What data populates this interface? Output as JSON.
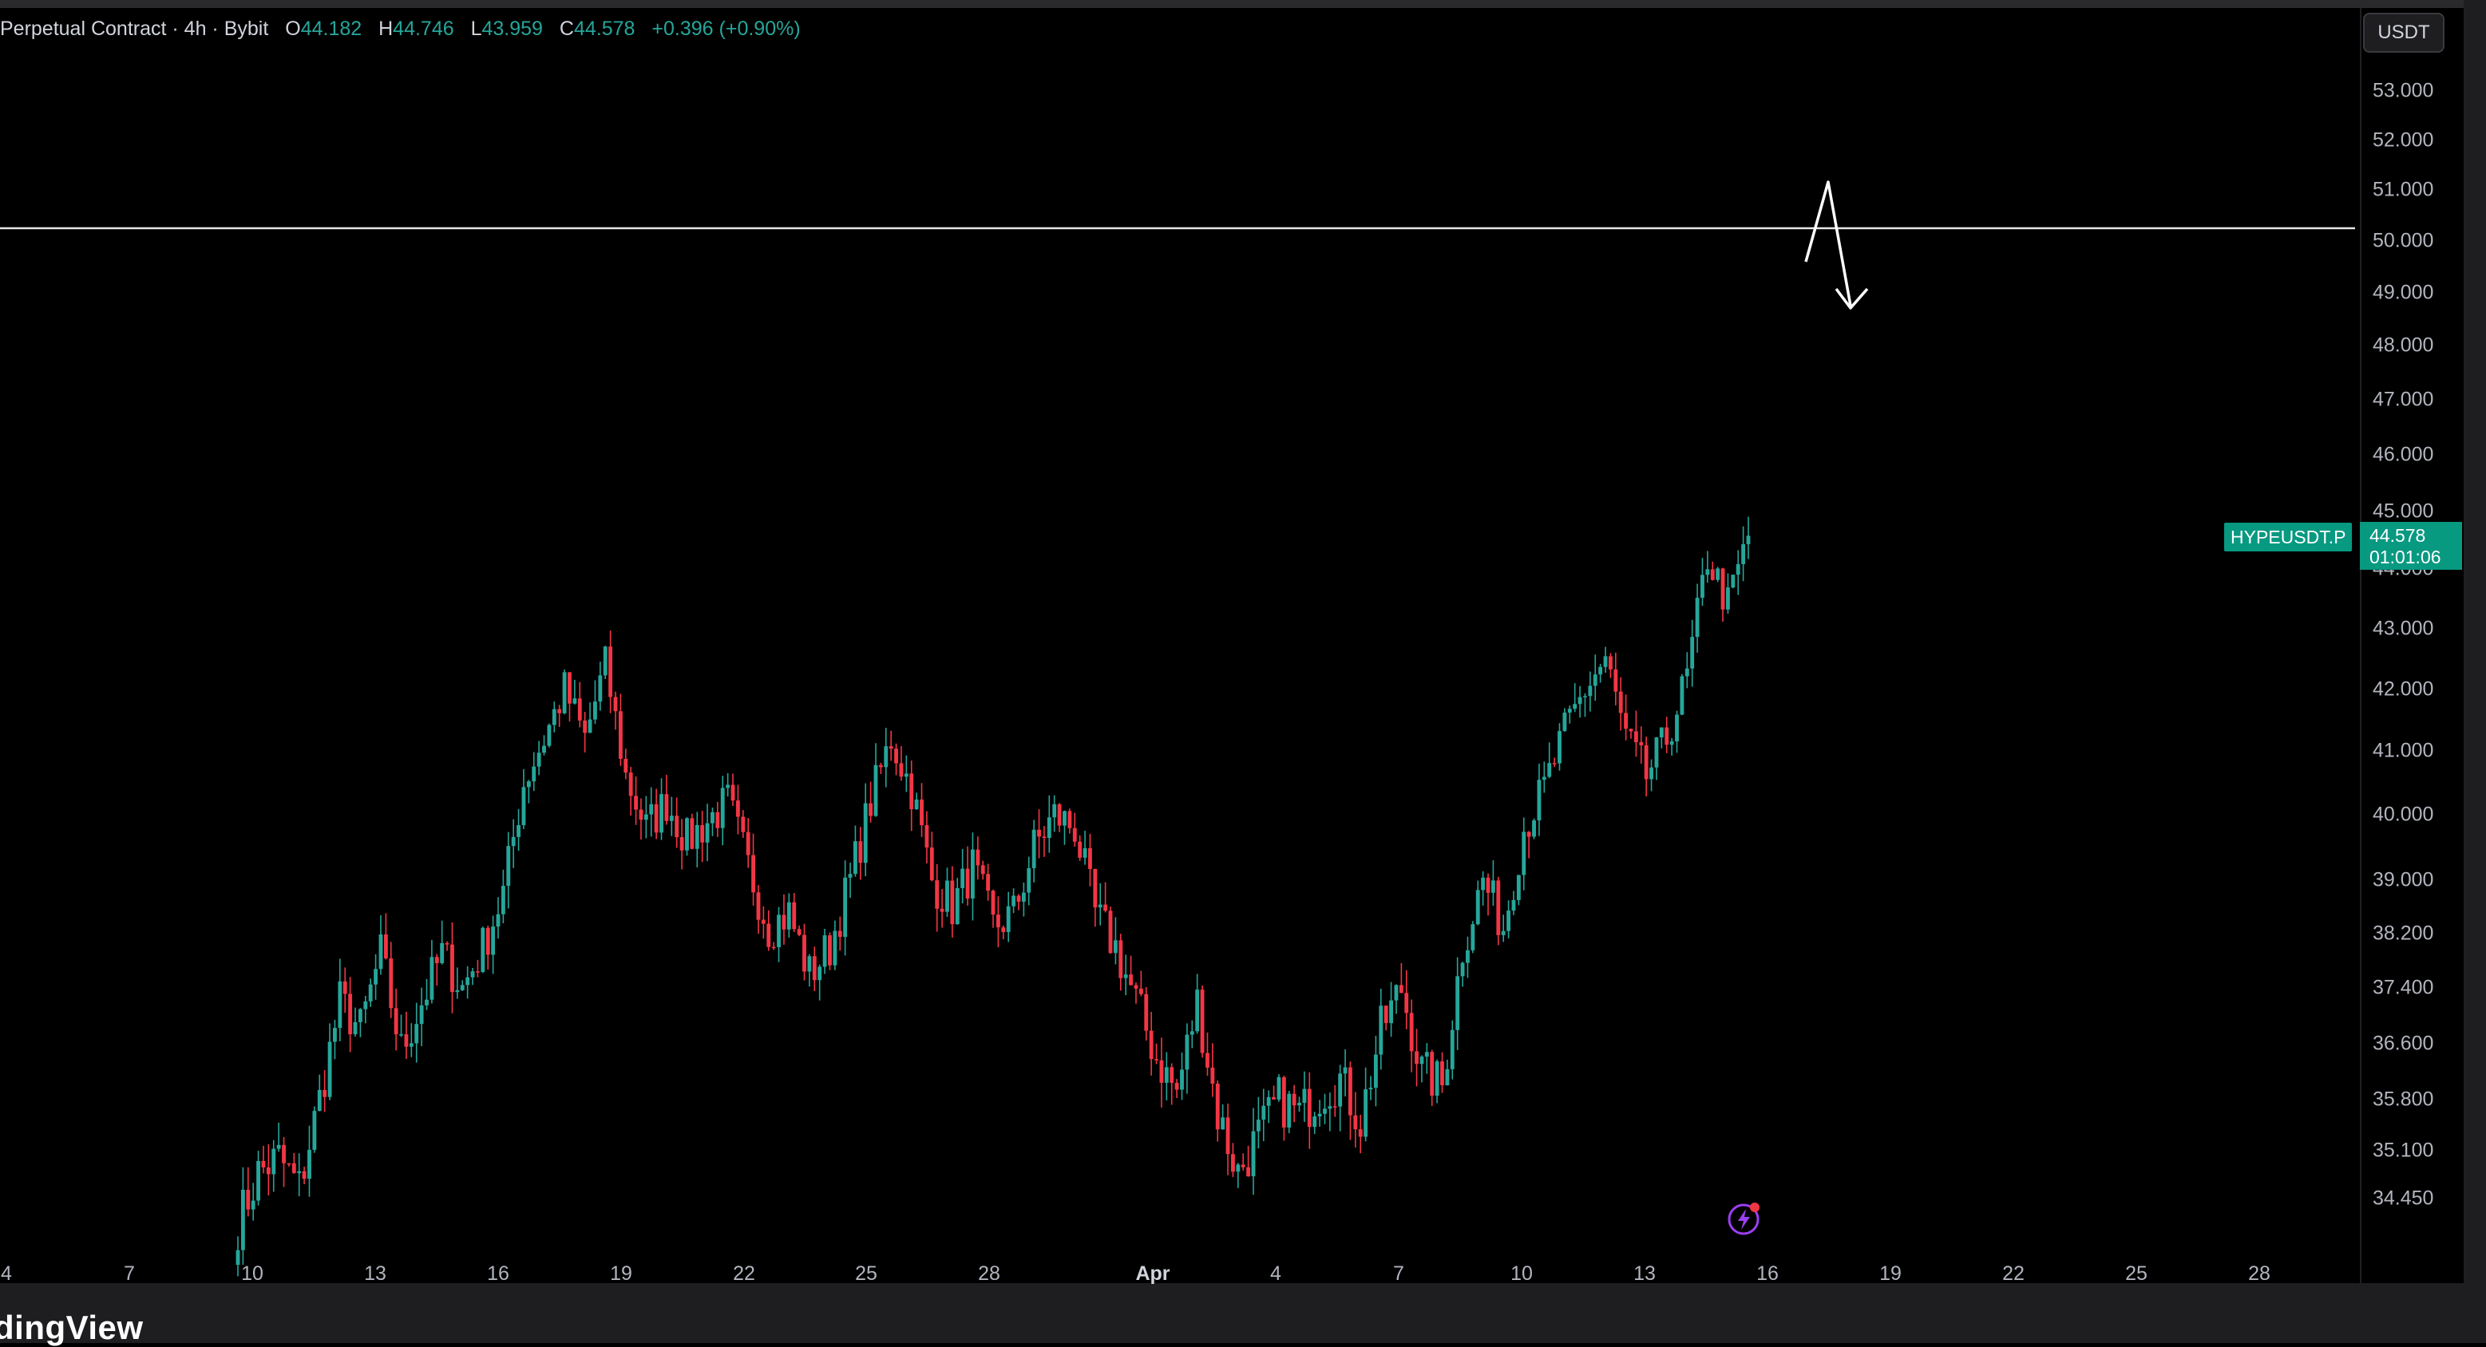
{
  "legend": {
    "title": "Perpetual Contract · 4h · Bybit",
    "open_key": "O",
    "open": "44.182",
    "high_key": "H",
    "high": "44.746",
    "low_key": "L",
    "low": "43.959",
    "close_key": "C",
    "close": "44.578",
    "change": "+0.396 (+0.90%)"
  },
  "currency_button": "USDT",
  "symbol_tag": "HYPEUSDT.P",
  "price_tag": {
    "price": "44.578",
    "countdown": "01:01:06"
  },
  "brand": "dingView",
  "flash_icon": "lightning-icon",
  "colors": {
    "up": "#26a69a",
    "down": "#f23645",
    "tag": "#089981",
    "background": "#000000"
  },
  "chart_data": {
    "type": "candlestick",
    "title": "Perpetual Contract · 4h · Bybit",
    "x_ticks": [
      "4",
      "7",
      "10",
      "13",
      "16",
      "19",
      "22",
      "25",
      "28",
      "Apr",
      "4",
      "7",
      "10",
      "13",
      "16",
      "19",
      "22",
      "25",
      "28"
    ],
    "y_ticks": [
      "53.000",
      "52.000",
      "51.000",
      "50.000",
      "49.000",
      "48.000",
      "47.000",
      "46.000",
      "45.000",
      "44.000",
      "43.000",
      "42.000",
      "41.000",
      "40.000",
      "39.000",
      "38.200",
      "37.400",
      "36.600",
      "35.800",
      "35.100",
      "34.450"
    ],
    "horizontal_line": 50.0,
    "arrow_annotation": {
      "from": 49.6,
      "peak": 51.1,
      "to": 48.8,
      "direction": "down"
    },
    "last_price": 44.578,
    "ohlc_last": {
      "open": 44.182,
      "high": 44.746,
      "low": 43.959,
      "close": 44.578
    },
    "close_path": [
      [
        "Mar 10",
        34.1
      ],
      [
        "Mar 10",
        34.8
      ],
      [
        "Mar 11",
        35.0
      ],
      [
        "Mar 11",
        34.6
      ],
      [
        "Mar 12",
        35.8
      ],
      [
        "Mar 12",
        37.2
      ],
      [
        "Mar 13",
        36.8
      ],
      [
        "Mar 13",
        37.9
      ],
      [
        "Mar 14",
        36.5
      ],
      [
        "Mar 14",
        37.2
      ],
      [
        "Mar 15",
        37.9
      ],
      [
        "Mar 15",
        37.4
      ],
      [
        "Mar 16",
        38.0
      ],
      [
        "Mar 16",
        38.8
      ],
      [
        "Mar 17",
        40.5
      ],
      [
        "Mar 17",
        41.2
      ],
      [
        "Mar 18",
        42.0
      ],
      [
        "Mar 18",
        41.2
      ],
      [
        "Mar 19",
        42.4
      ],
      [
        "Mar 19",
        40.6
      ],
      [
        "Mar 20",
        39.8
      ],
      [
        "Mar 20",
        40.2
      ],
      [
        "Mar 21",
        39.6
      ],
      [
        "Mar 21",
        39.9
      ],
      [
        "Mar 22",
        40.2
      ],
      [
        "Mar 22",
        39.2
      ],
      [
        "Mar 23",
        38.3
      ],
      [
        "Mar 23",
        38.5
      ],
      [
        "Mar 24",
        37.6
      ],
      [
        "Mar 24",
        38.0
      ],
      [
        "Mar 25",
        39.0
      ],
      [
        "Mar 25",
        40.2
      ],
      [
        "Mar 26",
        41.2
      ],
      [
        "Mar 26",
        40.4
      ],
      [
        "Mar 27",
        39.0
      ],
      [
        "Mar 27",
        38.6
      ],
      [
        "Mar 28",
        39.2
      ],
      [
        "Mar 28",
        38.3
      ],
      [
        "Mar 29",
        38.5
      ],
      [
        "Mar 29",
        39.5
      ],
      [
        "Mar 30",
        40.0
      ],
      [
        "Mar 30",
        39.8
      ],
      [
        "Mar 31",
        38.5
      ],
      [
        "Mar 31",
        38.0
      ],
      [
        "Apr 1",
        37.2
      ],
      [
        "Apr 1",
        36.4
      ],
      [
        "Apr 2",
        35.9
      ],
      [
        "Apr 2",
        37.2
      ],
      [
        "Apr 3",
        35.6
      ],
      [
        "Apr 3",
        34.8
      ],
      [
        "Apr 4",
        35.3
      ],
      [
        "Apr 4",
        35.8
      ],
      [
        "Apr 5",
        35.6
      ],
      [
        "Apr 5",
        35.9
      ],
      [
        "Apr 6",
        36.1
      ],
      [
        "Apr 6",
        35.5
      ],
      [
        "Apr 7",
        36.8
      ],
      [
        "Apr 7",
        37.4
      ],
      [
        "Apr 8",
        36.2
      ],
      [
        "Apr 8",
        36.0
      ],
      [
        "Apr 9",
        38.0
      ],
      [
        "Apr 9",
        39.0
      ],
      [
        "Apr 10",
        38.3
      ],
      [
        "Apr 10",
        39.8
      ],
      [
        "Apr 11",
        40.4
      ],
      [
        "Apr 11",
        41.3
      ],
      [
        "Apr 12",
        42.0
      ],
      [
        "Apr 12",
        42.5
      ],
      [
        "Apr 13",
        41.2
      ],
      [
        "Apr 13",
        40.6
      ],
      [
        "Apr 14",
        41.2
      ],
      [
        "Apr 14",
        42.2
      ],
      [
        "Apr 15",
        44.2
      ],
      [
        "Apr 15",
        43.4
      ],
      [
        "Apr 15",
        44.578
      ]
    ]
  }
}
